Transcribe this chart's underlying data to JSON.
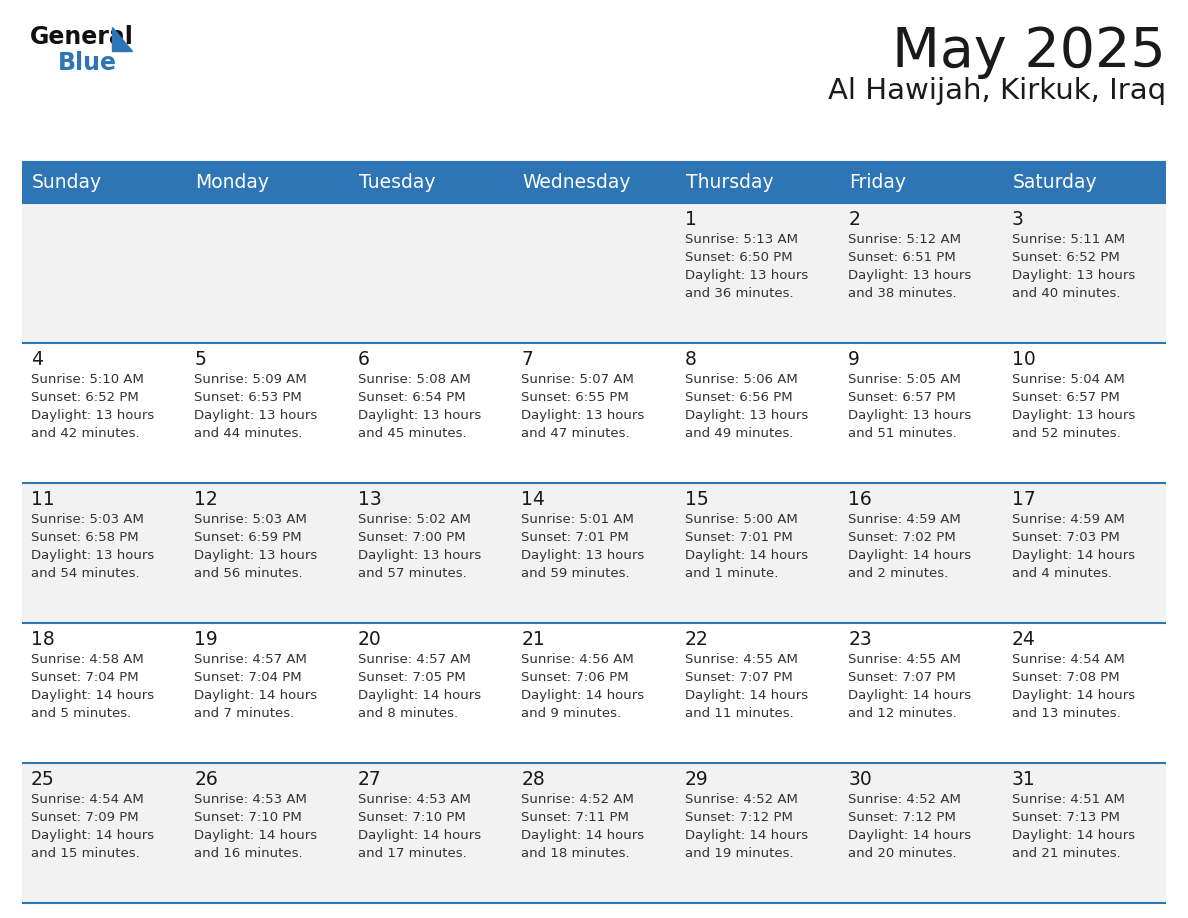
{
  "title": "May 2025",
  "subtitle": "Al Hawijah, Kirkuk, Iraq",
  "header_bg": "#2E75B6",
  "header_text_color": "#FFFFFF",
  "cell_bg_odd": "#F2F2F2",
  "cell_bg_even": "#FFFFFF",
  "day_names": [
    "Sunday",
    "Monday",
    "Tuesday",
    "Wednesday",
    "Thursday",
    "Friday",
    "Saturday"
  ],
  "calendar": [
    [
      null,
      null,
      null,
      null,
      {
        "day": 1,
        "sunrise": "5:13 AM",
        "sunset": "6:50 PM",
        "daylight": "13 hours\nand 36 minutes."
      },
      {
        "day": 2,
        "sunrise": "5:12 AM",
        "sunset": "6:51 PM",
        "daylight": "13 hours\nand 38 minutes."
      },
      {
        "day": 3,
        "sunrise": "5:11 AM",
        "sunset": "6:52 PM",
        "daylight": "13 hours\nand 40 minutes."
      }
    ],
    [
      {
        "day": 4,
        "sunrise": "5:10 AM",
        "sunset": "6:52 PM",
        "daylight": "13 hours\nand 42 minutes."
      },
      {
        "day": 5,
        "sunrise": "5:09 AM",
        "sunset": "6:53 PM",
        "daylight": "13 hours\nand 44 minutes."
      },
      {
        "day": 6,
        "sunrise": "5:08 AM",
        "sunset": "6:54 PM",
        "daylight": "13 hours\nand 45 minutes."
      },
      {
        "day": 7,
        "sunrise": "5:07 AM",
        "sunset": "6:55 PM",
        "daylight": "13 hours\nand 47 minutes."
      },
      {
        "day": 8,
        "sunrise": "5:06 AM",
        "sunset": "6:56 PM",
        "daylight": "13 hours\nand 49 minutes."
      },
      {
        "day": 9,
        "sunrise": "5:05 AM",
        "sunset": "6:57 PM",
        "daylight": "13 hours\nand 51 minutes."
      },
      {
        "day": 10,
        "sunrise": "5:04 AM",
        "sunset": "6:57 PM",
        "daylight": "13 hours\nand 52 minutes."
      }
    ],
    [
      {
        "day": 11,
        "sunrise": "5:03 AM",
        "sunset": "6:58 PM",
        "daylight": "13 hours\nand 54 minutes."
      },
      {
        "day": 12,
        "sunrise": "5:03 AM",
        "sunset": "6:59 PM",
        "daylight": "13 hours\nand 56 minutes."
      },
      {
        "day": 13,
        "sunrise": "5:02 AM",
        "sunset": "7:00 PM",
        "daylight": "13 hours\nand 57 minutes."
      },
      {
        "day": 14,
        "sunrise": "5:01 AM",
        "sunset": "7:01 PM",
        "daylight": "13 hours\nand 59 minutes."
      },
      {
        "day": 15,
        "sunrise": "5:00 AM",
        "sunset": "7:01 PM",
        "daylight": "14 hours\nand 1 minute."
      },
      {
        "day": 16,
        "sunrise": "4:59 AM",
        "sunset": "7:02 PM",
        "daylight": "14 hours\nand 2 minutes."
      },
      {
        "day": 17,
        "sunrise": "4:59 AM",
        "sunset": "7:03 PM",
        "daylight": "14 hours\nand 4 minutes."
      }
    ],
    [
      {
        "day": 18,
        "sunrise": "4:58 AM",
        "sunset": "7:04 PM",
        "daylight": "14 hours\nand 5 minutes."
      },
      {
        "day": 19,
        "sunrise": "4:57 AM",
        "sunset": "7:04 PM",
        "daylight": "14 hours\nand 7 minutes."
      },
      {
        "day": 20,
        "sunrise": "4:57 AM",
        "sunset": "7:05 PM",
        "daylight": "14 hours\nand 8 minutes."
      },
      {
        "day": 21,
        "sunrise": "4:56 AM",
        "sunset": "7:06 PM",
        "daylight": "14 hours\nand 9 minutes."
      },
      {
        "day": 22,
        "sunrise": "4:55 AM",
        "sunset": "7:07 PM",
        "daylight": "14 hours\nand 11 minutes."
      },
      {
        "day": 23,
        "sunrise": "4:55 AM",
        "sunset": "7:07 PM",
        "daylight": "14 hours\nand 12 minutes."
      },
      {
        "day": 24,
        "sunrise": "4:54 AM",
        "sunset": "7:08 PM",
        "daylight": "14 hours\nand 13 minutes."
      }
    ],
    [
      {
        "day": 25,
        "sunrise": "4:54 AM",
        "sunset": "7:09 PM",
        "daylight": "14 hours\nand 15 minutes."
      },
      {
        "day": 26,
        "sunrise": "4:53 AM",
        "sunset": "7:10 PM",
        "daylight": "14 hours\nand 16 minutes."
      },
      {
        "day": 27,
        "sunrise": "4:53 AM",
        "sunset": "7:10 PM",
        "daylight": "14 hours\nand 17 minutes."
      },
      {
        "day": 28,
        "sunrise": "4:52 AM",
        "sunset": "7:11 PM",
        "daylight": "14 hours\nand 18 minutes."
      },
      {
        "day": 29,
        "sunrise": "4:52 AM",
        "sunset": "7:12 PM",
        "daylight": "14 hours\nand 19 minutes."
      },
      {
        "day": 30,
        "sunrise": "4:52 AM",
        "sunset": "7:12 PM",
        "daylight": "14 hours\nand 20 minutes."
      },
      {
        "day": 31,
        "sunrise": "4:51 AM",
        "sunset": "7:13 PM",
        "daylight": "14 hours\nand 21 minutes."
      }
    ]
  ],
  "text_color_dark": "#1a1a1a",
  "line_color": "#2E75B6",
  "cell_text_color": "#333333",
  "logo_triangle_color": "#2E75B6",
  "fig_width": 11.88,
  "fig_height": 9.18,
  "dpi": 100
}
